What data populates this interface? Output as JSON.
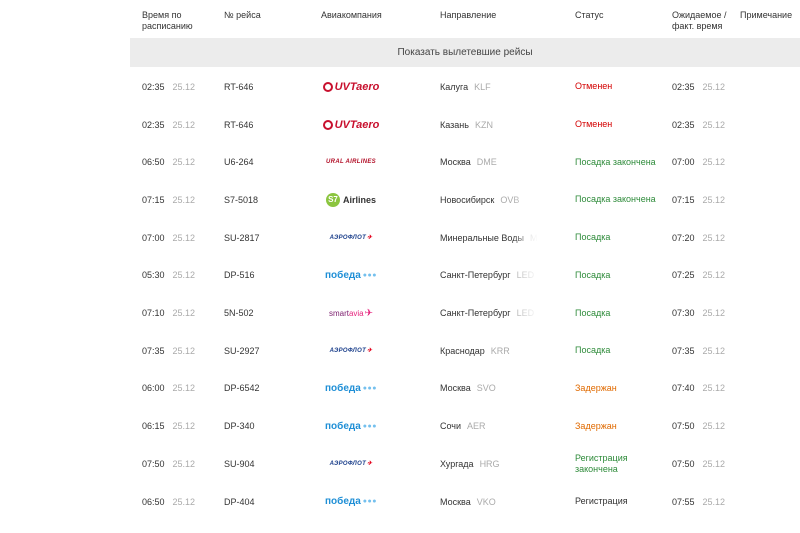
{
  "columns": {
    "scheduled": "Время по расписанию",
    "flight": "№ рейса",
    "airline": "Авиакомпания",
    "direction": "Направление",
    "status": "Статус",
    "expected": "Ожидаемое / факт. время",
    "note": "Примечание"
  },
  "show_departed_label": "Показать вылетевшие рейсы",
  "flights": [
    {
      "time": "02:35",
      "date": "25.12",
      "flight": "RT-646",
      "airline": "UVT aero",
      "city": "Калуга",
      "code": "KLF",
      "status": "Отменен",
      "status_kind": "cancel",
      "exp_time": "02:35",
      "exp_date": "25.12"
    },
    {
      "time": "02:35",
      "date": "25.12",
      "flight": "RT-646",
      "airline": "UVT aero",
      "city": "Казань",
      "code": "KZN",
      "status": "Отменен",
      "status_kind": "cancel",
      "exp_time": "02:35",
      "exp_date": "25.12"
    },
    {
      "time": "06:50",
      "date": "25.12",
      "flight": "U6-264",
      "airline": "URAL AIRLINES",
      "city": "Москва",
      "code": "DME",
      "status": "Посадка закончена",
      "status_kind": "green",
      "exp_time": "07:00",
      "exp_date": "25.12"
    },
    {
      "time": "07:15",
      "date": "25.12",
      "flight": "S7-5018",
      "airline": "S7 Airlines",
      "city": "Новосибирск",
      "code": "OVB",
      "status": "Посадка закончена",
      "status_kind": "green",
      "exp_time": "07:15",
      "exp_date": "25.12"
    },
    {
      "time": "07:00",
      "date": "25.12",
      "flight": "SU-2817",
      "airline": "АЭРОФЛОТ",
      "city": "Минеральные Воды",
      "code": "MRV",
      "status": "Посадка",
      "status_kind": "green",
      "exp_time": "07:20",
      "exp_date": "25.12"
    },
    {
      "time": "05:30",
      "date": "25.12",
      "flight": "DP-516",
      "airline": "победа",
      "city": "Санкт-Петербург",
      "code": "LED",
      "status": "Посадка",
      "status_kind": "green",
      "exp_time": "07:25",
      "exp_date": "25.12"
    },
    {
      "time": "07:10",
      "date": "25.12",
      "flight": "5N-502",
      "airline": "smartavia",
      "city": "Санкт-Петербург",
      "code": "LED",
      "status": "Посадка",
      "status_kind": "green",
      "exp_time": "07:30",
      "exp_date": "25.12"
    },
    {
      "time": "07:35",
      "date": "25.12",
      "flight": "SU-2927",
      "airline": "АЭРОФЛОТ",
      "city": "Краснодар",
      "code": "KRR",
      "status": "Посадка",
      "status_kind": "green",
      "exp_time": "07:35",
      "exp_date": "25.12"
    },
    {
      "time": "06:00",
      "date": "25.12",
      "flight": "DP-6542",
      "airline": "победа",
      "city": "Москва",
      "code": "SVO",
      "status": "Задержан",
      "status_kind": "delay",
      "exp_time": "07:40",
      "exp_date": "25.12"
    },
    {
      "time": "06:15",
      "date": "25.12",
      "flight": "DP-340",
      "airline": "победа",
      "city": "Сочи",
      "code": "AER",
      "status": "Задержан",
      "status_kind": "delay",
      "exp_time": "07:50",
      "exp_date": "25.12"
    },
    {
      "time": "07:50",
      "date": "25.12",
      "flight": "SU-904",
      "airline": "АЭРОФЛОТ",
      "city": "Хургада",
      "code": "HRG",
      "status": "Регистрация закончена",
      "status_kind": "green",
      "exp_time": "07:50",
      "exp_date": "25.12"
    },
    {
      "time": "06:50",
      "date": "25.12",
      "flight": "DP-404",
      "airline": "победа",
      "city": "Москва",
      "code": "VKO",
      "status": "Регистрация",
      "status_kind": "reg",
      "exp_time": "07:55",
      "exp_date": "25.12"
    }
  ],
  "colors": {
    "cancel": "#d40000",
    "green": "#2e8b3a",
    "delay": "#e06a00",
    "bar": "#ececec"
  }
}
